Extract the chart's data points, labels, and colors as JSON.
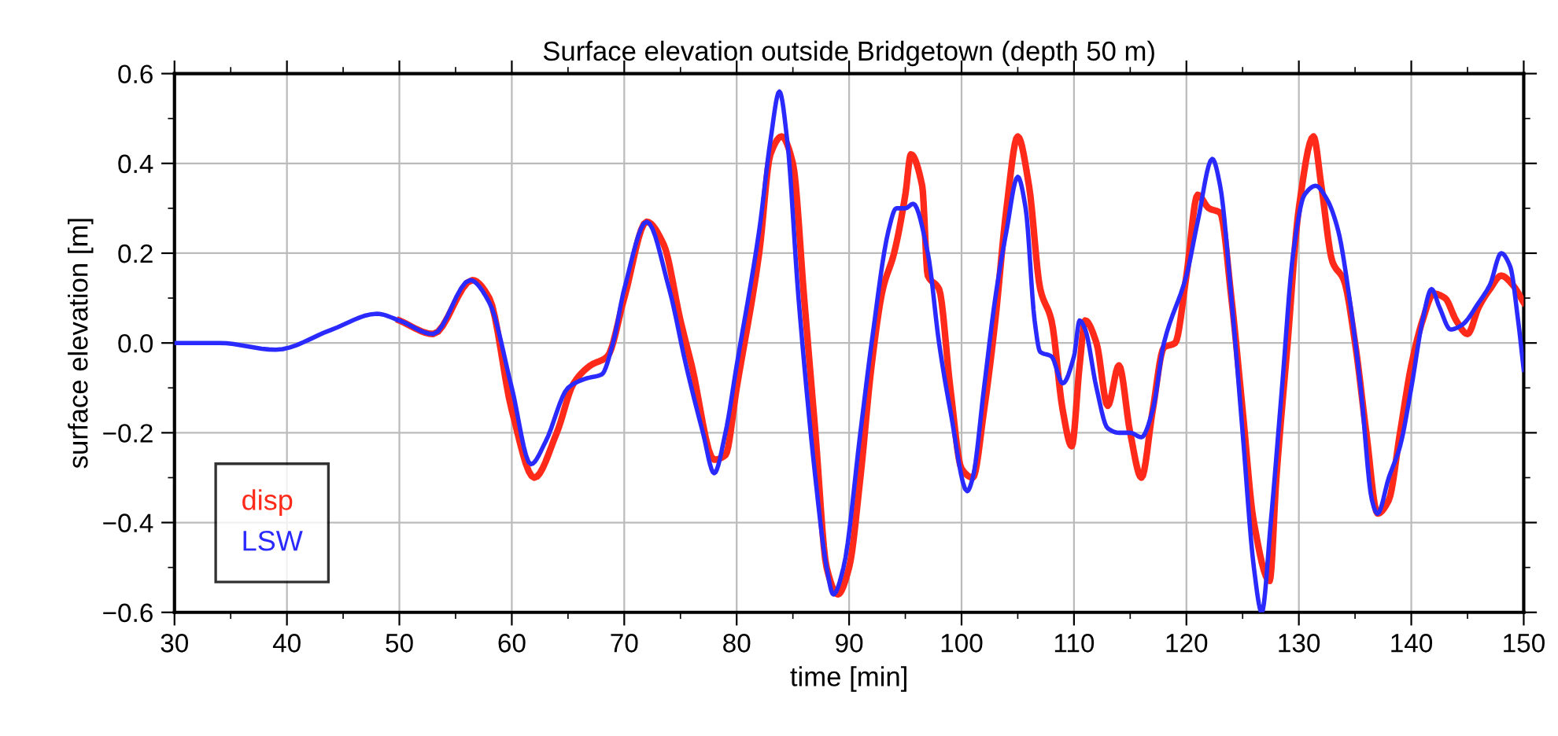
{
  "chart_data": {
    "type": "line",
    "title": "Surface elevation outside Bridgetown (depth 50 m)",
    "xlabel": "time [min]",
    "ylabel": "surface elevation [m]",
    "xlim": [
      30,
      150
    ],
    "xticks": [
      30,
      40,
      50,
      60,
      70,
      80,
      90,
      100,
      110,
      120,
      130,
      140,
      150
    ],
    "ylim": [
      -0.6,
      0.6
    ],
    "yticks": [
      {
        "value": -0.6,
        "label": "−0.6"
      },
      {
        "value": -0.4,
        "label": "−0.4"
      },
      {
        "value": -0.2,
        "label": "−0.2"
      },
      {
        "value": 0,
        "label": "0.0"
      },
      {
        "value": 0.2,
        "label": "0.2"
      },
      {
        "value": 0.4,
        "label": "0.4"
      },
      {
        "value": 0.6,
        "label": "0.6"
      }
    ],
    "grid": true,
    "legend": "bottom left",
    "marker": "none",
    "line_style": "solid",
    "series": [
      {
        "name": "disp",
        "color": "#ff2a1a",
        "x": [
          50,
          53,
          56.5,
          58,
          60,
          62,
          64,
          65.5,
          67,
          68.5,
          70,
          72,
          73.5,
          75,
          76,
          78,
          79,
          80,
          82,
          83,
          84,
          85,
          86,
          87,
          88,
          89,
          90,
          91,
          92,
          93,
          94,
          95,
          95.5,
          96.5,
          97,
          98,
          99,
          100,
          101,
          102,
          103,
          104,
          105,
          106,
          107,
          108,
          109,
          109.8,
          110.5,
          111,
          112,
          113,
          114,
          115,
          116,
          117,
          118,
          119,
          120,
          121,
          122,
          123,
          124,
          125,
          126,
          127.4,
          128,
          129,
          130,
          131.3,
          132,
          133,
          134,
          135,
          136,
          137,
          138,
          139,
          140,
          141,
          142,
          143,
          144,
          145,
          146,
          147,
          148,
          149,
          150
        ],
        "values": [
          0.05,
          0.02,
          0.14,
          0.1,
          -0.15,
          -0.3,
          -0.2,
          -0.09,
          -0.05,
          -0.03,
          0.1,
          0.27,
          0.22,
          0.05,
          -0.05,
          -0.26,
          -0.25,
          -0.1,
          0.2,
          0.42,
          0.46,
          0.4,
          0.1,
          -0.2,
          -0.5,
          -0.56,
          -0.5,
          -0.3,
          -0.05,
          0.12,
          0.2,
          0.33,
          0.42,
          0.35,
          0.15,
          0.12,
          -0.1,
          -0.28,
          -0.3,
          -0.15,
          0.05,
          0.3,
          0.46,
          0.35,
          0.12,
          0.05,
          -0.15,
          -0.23,
          -0.05,
          0.05,
          0.0,
          -0.14,
          -0.05,
          -0.2,
          -0.3,
          -0.15,
          -0.01,
          0.0,
          0.15,
          0.33,
          0.3,
          0.29,
          0.1,
          -0.15,
          -0.4,
          -0.53,
          -0.3,
          0.0,
          0.3,
          0.46,
          0.35,
          0.18,
          0.14,
          0.0,
          -0.2,
          -0.38,
          -0.35,
          -0.2,
          -0.05,
          0.05,
          0.11,
          0.1,
          0.05,
          0.02,
          0.08,
          0.12,
          0.15,
          0.13,
          0.09
        ]
      },
      {
        "name": "LSW",
        "color": "#2a2aff",
        "x": [
          30,
          34,
          39,
          44,
          48,
          50,
          53,
          56.3,
          58,
          60,
          61.7,
          63,
          65,
          66.5,
          68,
          69,
          70,
          72,
          74,
          75.5,
          77,
          78,
          79,
          80,
          82,
          83,
          83.8,
          84.5,
          85.5,
          87,
          88,
          88.6,
          89.5,
          91,
          92,
          93.5,
          94.2,
          95,
          95.7,
          97,
          98,
          99,
          100.5,
          101,
          102,
          103,
          104,
          105,
          105.7,
          106.5,
          107,
          108,
          109,
          110,
          110.5,
          111,
          112,
          113,
          114,
          115,
          116,
          117,
          118,
          120,
          121,
          122.3,
          123,
          124,
          125,
          126,
          126.7,
          127.5,
          128.5,
          129.5,
          130.5,
          131.5,
          132.5,
          133.5,
          134.5,
          135.5,
          136.5,
          137,
          138,
          139,
          140,
          141,
          141.8,
          142.5,
          143.5,
          144.5,
          146,
          147,
          148,
          148.8,
          149.5,
          150
        ],
        "values": [
          0,
          0,
          -0.015,
          0.03,
          0.065,
          0.05,
          0.02,
          0.14,
          0.09,
          -0.1,
          -0.27,
          -0.22,
          -0.1,
          -0.08,
          -0.07,
          0.0,
          0.12,
          0.27,
          0.12,
          -0.05,
          -0.2,
          -0.29,
          -0.2,
          -0.05,
          0.25,
          0.45,
          0.56,
          0.45,
          0.1,
          -0.3,
          -0.5,
          -0.56,
          -0.5,
          -0.2,
          0.0,
          0.25,
          0.3,
          0.3,
          0.31,
          0.2,
          0.0,
          -0.15,
          -0.33,
          -0.3,
          -0.1,
          0.1,
          0.25,
          0.37,
          0.3,
          0.05,
          -0.02,
          -0.03,
          -0.09,
          -0.03,
          0.05,
          0.03,
          -0.1,
          -0.19,
          -0.2,
          -0.2,
          -0.21,
          -0.15,
          0.0,
          0.15,
          0.27,
          0.41,
          0.35,
          0.1,
          -0.2,
          -0.5,
          -0.6,
          -0.4,
          -0.1,
          0.2,
          0.33,
          0.35,
          0.32,
          0.25,
          0.1,
          -0.1,
          -0.35,
          -0.38,
          -0.3,
          -0.23,
          -0.1,
          0.05,
          0.12,
          0.08,
          0.03,
          0.04,
          0.09,
          0.13,
          0.2,
          0.17,
          0.05,
          -0.06
        ]
      }
    ]
  }
}
